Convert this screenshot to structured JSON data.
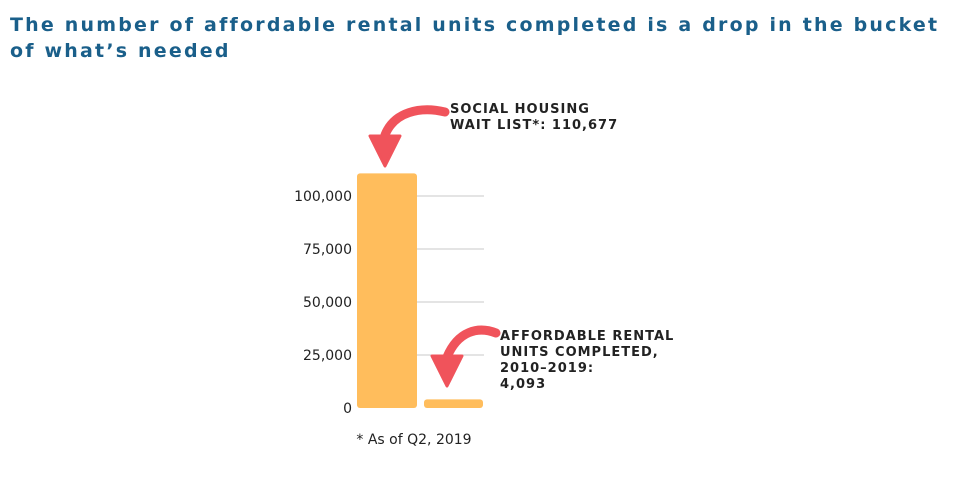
{
  "title": "The number of affordable rental units completed is a drop in the bucket of what’s needed",
  "footnote": "* As of Q2, 2019",
  "colors": {
    "title": "#1a5f8a",
    "bar": "#ffbd5c",
    "arrow": "#f0535b",
    "grid": "#c8c8c8"
  },
  "chart_data": {
    "type": "bar",
    "categories": [
      "Social housing wait list",
      "Affordable rental units completed, 2010–2019"
    ],
    "values": [
      110677,
      4093
    ],
    "ylim": [
      0,
      100000
    ],
    "yticks": [
      0,
      25000,
      50000,
      75000,
      100000
    ],
    "ytick_labels": [
      "0",
      "25,000",
      "50,000",
      "75,000",
      "100,000"
    ],
    "grid": true,
    "annotations": [
      {
        "lines": [
          "SOCIAL HOUSING",
          "WAIT LIST*: 110,677"
        ]
      },
      {
        "lines": [
          "AFFORDABLE RENTAL",
          "UNITS COMPLETED,",
          "2010–2019:",
          "4,093"
        ]
      }
    ]
  }
}
